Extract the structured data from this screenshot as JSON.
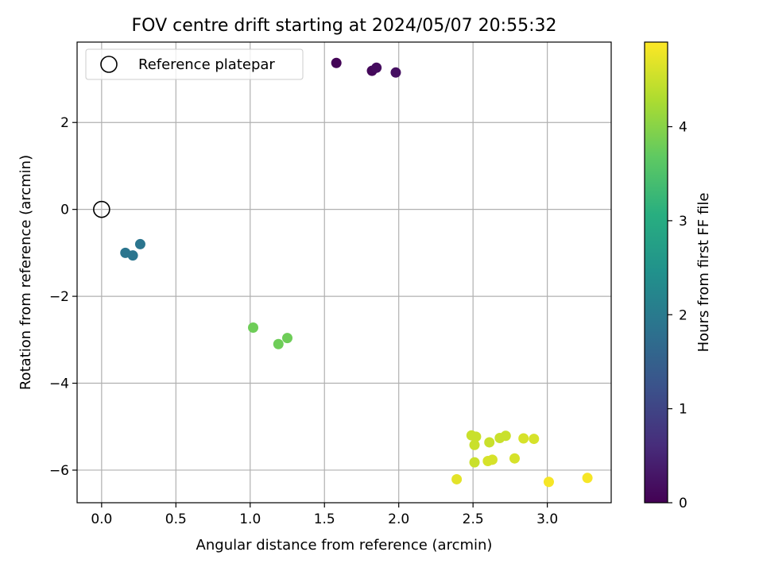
{
  "chart_data": {
    "type": "scatter",
    "title": "FOV centre drift starting at 2024/05/07 20:55:32",
    "xlabel": "Angular distance from reference (arcmin)",
    "ylabel": "Rotation from reference (arcmin)",
    "xlim": [
      -0.165,
      3.43
    ],
    "ylim": [
      -6.75,
      3.85
    ],
    "xticks": [
      0.0,
      0.5,
      1.0,
      1.5,
      2.0,
      2.5,
      3.0
    ],
    "xtick_labels": [
      "0.0",
      "0.5",
      "1.0",
      "1.5",
      "2.0",
      "2.5",
      "3.0"
    ],
    "yticks": [
      -6,
      -4,
      -2,
      0,
      2
    ],
    "ytick_labels": [
      "−6",
      "−4",
      "−2",
      "0",
      "2"
    ],
    "grid": true,
    "legend": {
      "position": "top-left",
      "entries": [
        "Reference platepar"
      ]
    },
    "reference_point": {
      "x": 0.0,
      "y": 0.0,
      "label": "Reference platepar"
    },
    "colorbar": {
      "label": "Hours from first FF file",
      "colormap": "viridis",
      "range": [
        0,
        4.9
      ],
      "ticks": [
        0,
        1,
        2,
        3,
        4
      ],
      "tick_labels": [
        "0",
        "1",
        "2",
        "3",
        "4"
      ]
    },
    "points": [
      {
        "x": 1.58,
        "y": 3.37,
        "hours": 0.05
      },
      {
        "x": 1.82,
        "y": 3.19,
        "hours": 0.1
      },
      {
        "x": 1.85,
        "y": 3.26,
        "hours": 0.15
      },
      {
        "x": 1.98,
        "y": 3.15,
        "hours": 0.2
      },
      {
        "x": 0.16,
        "y": -1.0,
        "hours": 1.9
      },
      {
        "x": 0.21,
        "y": -1.06,
        "hours": 1.9
      },
      {
        "x": 0.26,
        "y": -0.8,
        "hours": 1.9
      },
      {
        "x": 1.02,
        "y": -2.72,
        "hours": 3.8
      },
      {
        "x": 1.19,
        "y": -3.1,
        "hours": 3.8
      },
      {
        "x": 1.25,
        "y": -2.96,
        "hours": 3.8
      },
      {
        "x": 2.49,
        "y": -5.2,
        "hours": 4.5
      },
      {
        "x": 2.52,
        "y": -5.23,
        "hours": 4.5
      },
      {
        "x": 2.51,
        "y": -5.42,
        "hours": 4.5
      },
      {
        "x": 2.61,
        "y": -5.36,
        "hours": 4.5
      },
      {
        "x": 2.68,
        "y": -5.26,
        "hours": 4.5
      },
      {
        "x": 2.72,
        "y": -5.21,
        "hours": 4.5
      },
      {
        "x": 2.84,
        "y": -5.27,
        "hours": 4.6
      },
      {
        "x": 2.91,
        "y": -5.28,
        "hours": 4.6
      },
      {
        "x": 2.51,
        "y": -5.82,
        "hours": 4.5
      },
      {
        "x": 2.6,
        "y": -5.79,
        "hours": 4.6
      },
      {
        "x": 2.63,
        "y": -5.76,
        "hours": 4.6
      },
      {
        "x": 2.78,
        "y": -5.73,
        "hours": 4.6
      },
      {
        "x": 2.39,
        "y": -6.21,
        "hours": 4.7
      },
      {
        "x": 3.01,
        "y": -6.27,
        "hours": 4.85
      },
      {
        "x": 3.27,
        "y": -6.18,
        "hours": 4.85
      }
    ]
  }
}
